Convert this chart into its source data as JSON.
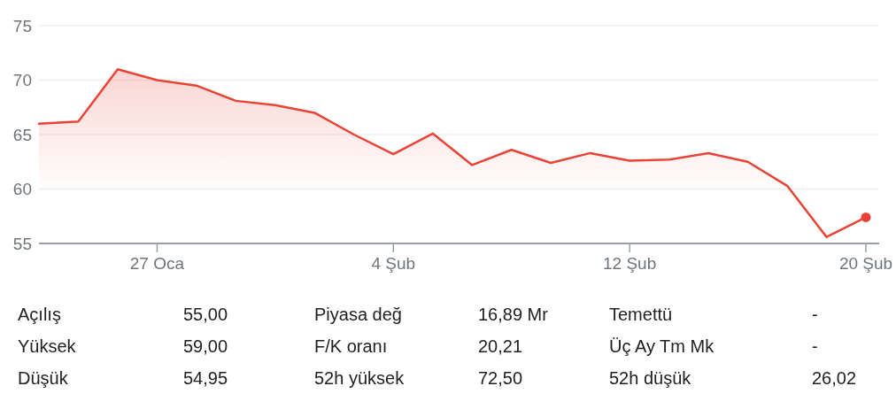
{
  "chart_data": [
    {
      "type": "area",
      "categories": [
        null,
        null,
        null,
        "27 Oca",
        null,
        null,
        null,
        null,
        null,
        "4 Şub",
        null,
        null,
        null,
        null,
        null,
        "12 Şub",
        null,
        null,
        null,
        null,
        null,
        "20 Şub"
      ],
      "series": [
        {
          "color": "#ea4335",
          "values": [
            66.0,
            66.2,
            71.0,
            70.0,
            69.5,
            68.1,
            67.7,
            67.0,
            65.0,
            63.2,
            65.1,
            62.2,
            63.6,
            62.4,
            63.3,
            62.6,
            62.7,
            63.3,
            62.5,
            60.3,
            55.6,
            57.4
          ]
        },
        {
          "type": "scatter",
          "color": "#ea4335",
          "marker": "circle",
          "values": [
            null,
            null,
            null,
            null,
            null,
            null,
            null,
            null,
            null,
            null,
            null,
            null,
            null,
            null,
            null,
            null,
            null,
            null,
            null,
            null,
            null,
            57.4
          ]
        }
      ],
      "ylim": [
        55,
        75
      ],
      "yticks": [
        55,
        60,
        65,
        70,
        75
      ],
      "grid": "y"
    },
    {
      "type": "other",
      "annotations": [
        "Açılış",
        "55,00",
        "Piyasa değ",
        "16,89 Mr",
        "Temettü",
        "-",
        "Yüksek",
        "59,00",
        "F/K oranı",
        "20,21",
        "Üç Ay Tm Mk",
        "-",
        "Düşük",
        "54,95",
        "52h yüksek",
        "72,50",
        "52h düşük",
        "26,02"
      ]
    }
  ]
}
